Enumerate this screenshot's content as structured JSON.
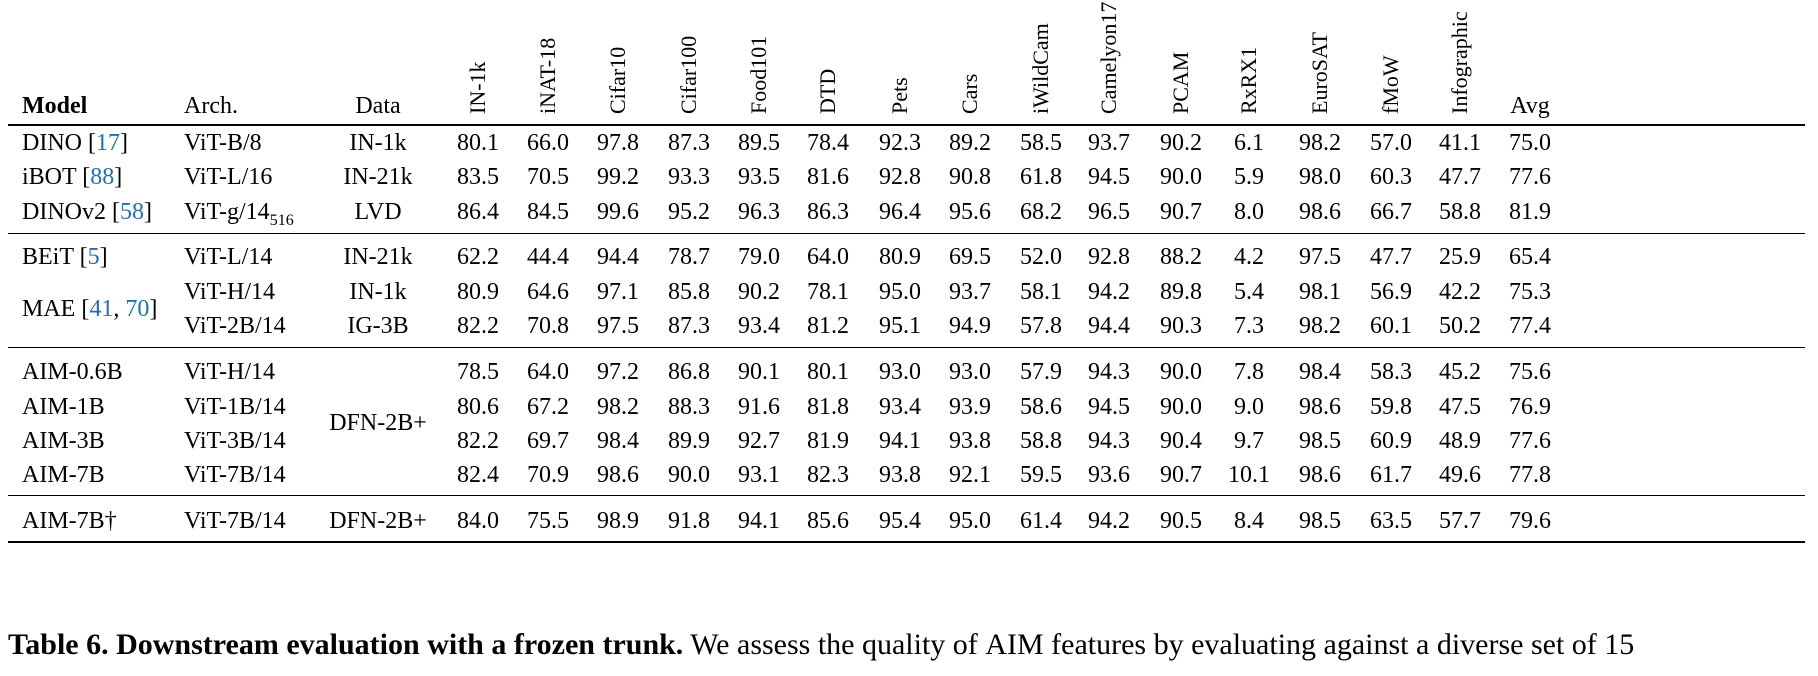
{
  "header": {
    "model": "Model",
    "arch": "Arch.",
    "data": "Data",
    "datasets": [
      "IN-1k",
      "iNAT-18",
      "Cifar10",
      "Cifar100",
      "Food101",
      "DTD",
      "Pets",
      "Cars",
      "iWildCam",
      "Camelyon17",
      "PCAM",
      "RxRX1",
      "EuroSAT",
      "fMoW",
      "Infographic"
    ],
    "avg": "Avg"
  },
  "groups": [
    {
      "rows": [
        {
          "model": "DINO",
          "cite": "17",
          "arch": "ViT-B/8",
          "data": "IN-1k",
          "values": [
            "80.1",
            "66.0",
            "97.8",
            "87.3",
            "89.5",
            "78.4",
            "92.3",
            "89.2",
            "58.5",
            "93.7",
            "90.2",
            "6.1",
            "98.2",
            "57.0",
            "41.1"
          ],
          "avg": "75.0"
        },
        {
          "model": "iBOT",
          "cite": "88",
          "arch": "ViT-L/16",
          "data": "IN-21k",
          "values": [
            "83.5",
            "70.5",
            "99.2",
            "93.3",
            "93.5",
            "81.6",
            "92.8",
            "90.8",
            "61.8",
            "94.5",
            "90.0",
            "5.9",
            "98.0",
            "60.3",
            "47.7"
          ],
          "avg": "77.6"
        },
        {
          "model": "DINOv2",
          "cite": "58",
          "arch": "ViT-g/14",
          "arch_sub": "516",
          "data": "LVD",
          "values": [
            "86.4",
            "84.5",
            "99.6",
            "95.2",
            "96.3",
            "86.3",
            "96.4",
            "95.6",
            "68.2",
            "96.5",
            "90.7",
            "8.0",
            "98.6",
            "66.7",
            "58.8"
          ],
          "avg": "81.9"
        }
      ]
    },
    {
      "rows": [
        {
          "model": "BEiT",
          "cite": "5",
          "arch": "ViT-L/14",
          "data": "IN-21k",
          "values": [
            "62.2",
            "44.4",
            "94.4",
            "78.7",
            "79.0",
            "64.0",
            "80.9",
            "69.5",
            "52.0",
            "92.8",
            "88.2",
            "4.2",
            "97.5",
            "47.7",
            "25.9"
          ],
          "avg": "65.4"
        },
        {
          "arch": "ViT-H/14",
          "data": "IN-1k",
          "values": [
            "80.9",
            "64.6",
            "97.1",
            "85.8",
            "90.2",
            "78.1",
            "95.0",
            "93.7",
            "58.1",
            "94.2",
            "89.8",
            "5.4",
            "98.1",
            "56.9",
            "42.2"
          ],
          "avg": "75.3"
        },
        {
          "arch": "ViT-2B/14",
          "data": "IG-3B",
          "values": [
            "82.2",
            "70.8",
            "97.5",
            "87.3",
            "93.4",
            "81.2",
            "95.1",
            "94.9",
            "57.8",
            "94.4",
            "90.3",
            "7.3",
            "98.2",
            "60.1",
            "50.2"
          ],
          "avg": "77.4"
        }
      ],
      "mae": {
        "model": "MAE",
        "cite1": "41",
        "sep": ", ",
        "cite2": "70"
      }
    },
    {
      "rows": [
        {
          "model": "AIM-0.6B",
          "arch": "ViT-H/14",
          "values": [
            "78.5",
            "64.0",
            "97.2",
            "86.8",
            "90.1",
            "80.1",
            "93.0",
            "93.0",
            "57.9",
            "94.3",
            "90.0",
            "7.8",
            "98.4",
            "58.3",
            "45.2"
          ],
          "avg": "75.6"
        },
        {
          "model": "AIM-1B",
          "arch": "ViT-1B/14",
          "values": [
            "80.6",
            "67.2",
            "98.2",
            "88.3",
            "91.6",
            "81.8",
            "93.4",
            "93.9",
            "58.6",
            "94.5",
            "90.0",
            "9.0",
            "98.6",
            "59.8",
            "47.5"
          ],
          "avg": "76.9"
        },
        {
          "model": "AIM-3B",
          "arch": "ViT-3B/14",
          "values": [
            "82.2",
            "69.7",
            "98.4",
            "89.9",
            "92.7",
            "81.9",
            "94.1",
            "93.8",
            "58.8",
            "94.3",
            "90.4",
            "9.7",
            "98.5",
            "60.9",
            "48.9"
          ],
          "avg": "77.6"
        },
        {
          "model": "AIM-7B",
          "arch": "ViT-7B/14",
          "values": [
            "82.4",
            "70.9",
            "98.6",
            "90.0",
            "93.1",
            "82.3",
            "93.8",
            "92.1",
            "59.5",
            "93.6",
            "90.7",
            "10.1",
            "98.6",
            "61.7",
            "49.6"
          ],
          "avg": "77.8"
        }
      ],
      "shared_data": "DFN-2B+"
    },
    {
      "rows": [
        {
          "model": "AIM-7B†",
          "arch": "ViT-7B/14",
          "data": "DFN-2B+",
          "values": [
            "84.0",
            "75.5",
            "98.9",
            "91.8",
            "94.1",
            "85.6",
            "95.4",
            "95.0",
            "61.4",
            "94.2",
            "90.5",
            "8.4",
            "98.5",
            "63.5",
            "57.7"
          ],
          "avg": "79.6"
        }
      ]
    }
  ],
  "caption": {
    "label": "Table 6. Downstream evaluation with a frozen trunk.",
    "text_before": " We assess the quality of ",
    "aim": "AIM",
    "text_after": " features by evaluating against a diverse set of 15"
  }
}
